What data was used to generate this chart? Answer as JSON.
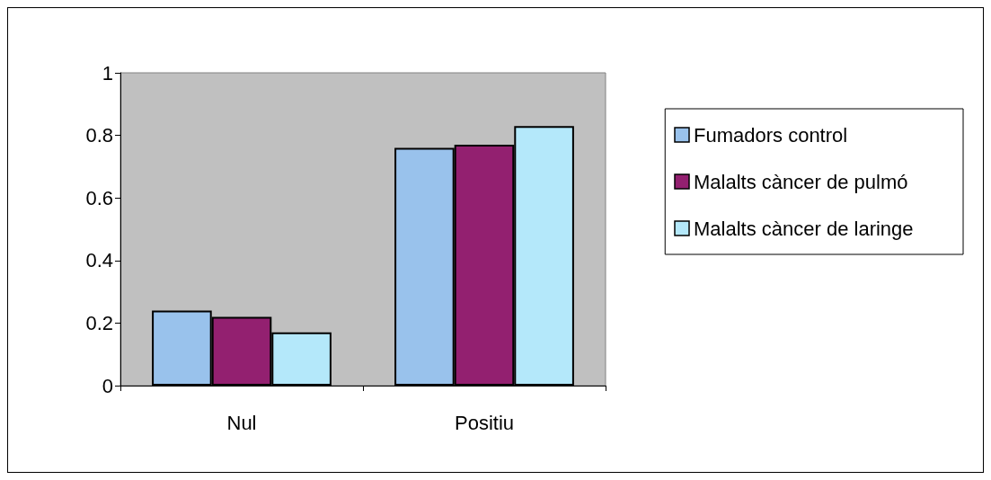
{
  "chart_data": {
    "type": "bar",
    "categories": [
      "Nul",
      "Positiu"
    ],
    "series": [
      {
        "name": "Fumadors control",
        "color": "#99c2ec",
        "values": [
          0.24,
          0.76
        ]
      },
      {
        "name": "Malalts càncer de pulmó",
        "color": "#932070",
        "values": [
          0.22,
          0.77
        ]
      },
      {
        "name": "Malalts càncer de laringe",
        "color": "#b4e8fa",
        "values": [
          0.17,
          0.83
        ]
      }
    ],
    "ylim": [
      0,
      1
    ],
    "yticks": [
      0,
      0.2,
      0.4,
      0.6,
      0.8,
      1
    ],
    "grid": false,
    "legend": "right"
  }
}
